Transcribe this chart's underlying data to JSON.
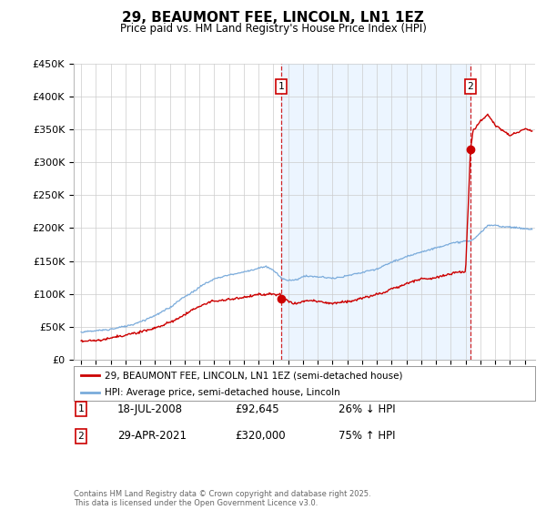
{
  "title": "29, BEAUMONT FEE, LINCOLN, LN1 1EZ",
  "subtitle": "Price paid vs. HM Land Registry's House Price Index (HPI)",
  "legend_line1": "29, BEAUMONT FEE, LINCOLN, LN1 1EZ (semi-detached house)",
  "legend_line2": "HPI: Average price, semi-detached house, Lincoln",
  "footnote": "Contains HM Land Registry data © Crown copyright and database right 2025.\nThis data is licensed under the Open Government Licence v3.0.",
  "point1_label": "1",
  "point1_date": "18-JUL-2008",
  "point1_price": "£92,645",
  "point1_hpi": "26% ↓ HPI",
  "point1_year": 2008.54,
  "point1_value": 92645,
  "point2_label": "2",
  "point2_date": "29-APR-2021",
  "point2_price": "£320,000",
  "point2_hpi": "75% ↑ HPI",
  "point2_year": 2021.33,
  "point2_value": 320000,
  "red_color": "#cc0000",
  "blue_color": "#7aabdb",
  "blue_fill": "#ddeeff",
  "dashed_color": "#cc0000",
  "background_color": "#ffffff",
  "grid_color": "#cccccc",
  "ylim": [
    0,
    450000
  ],
  "yticks": [
    0,
    50000,
    100000,
    150000,
    200000,
    250000,
    300000,
    350000,
    400000,
    450000
  ],
  "ytick_labels": [
    "£0",
    "£50K",
    "£100K",
    "£150K",
    "£200K",
    "£250K",
    "£300K",
    "£350K",
    "£400K",
    "£450K"
  ],
  "xlim_start": 1994.5,
  "xlim_end": 2025.7
}
